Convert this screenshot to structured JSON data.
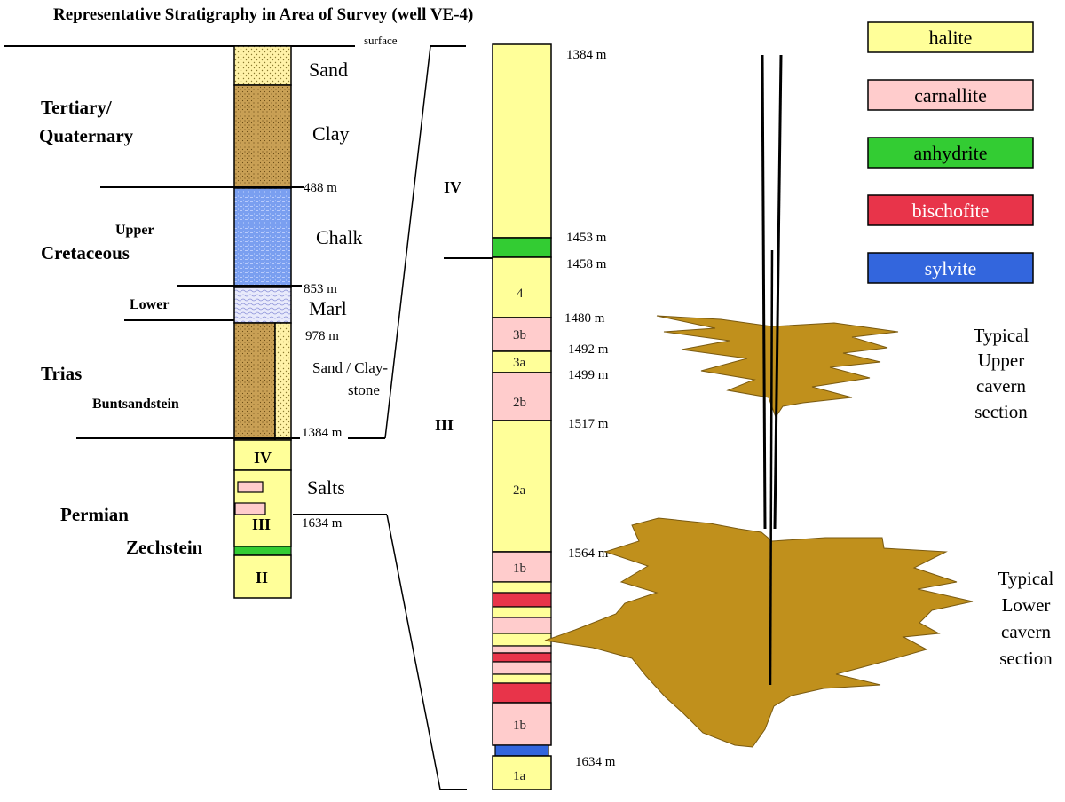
{
  "title": "Representative Stratigraphy in Area of Survey (well VE-4)",
  "surface_label": "surface",
  "eras": {
    "tertiary": "Tertiary/",
    "quaternary": "Quaternary",
    "upper": "Upper",
    "cretaceous": "Cretaceous",
    "lower": "Lower",
    "trias": "Trias",
    "buntsandstein": "Buntsandstein",
    "permian": "Permian",
    "zechstein": "Zechstein"
  },
  "lithology_labels": {
    "sand": "Sand",
    "clay": "Clay",
    "chalk": "Chalk",
    "marl": "Marl",
    "sand_clay_1": "Sand / Clay-",
    "sand_clay_2": "stone",
    "salts": "Salts"
  },
  "left_column_depths": {
    "d488": "488 m",
    "d853": "853 m",
    "d978": "978 m",
    "d1384": "1384 m",
    "d1634": "1634 m"
  },
  "left_column_units": {
    "iv": "IV",
    "iii": "III",
    "ii": "II"
  },
  "detail_column_depths": {
    "d1384": "1384 m",
    "d1453": "1453 m",
    "d1458": "1458 m",
    "d1480": "1480 m",
    "d1492": "1492 m",
    "d1499": "1499 m",
    "d1517": "1517 m",
    "d1564": "1564 m",
    "d1634": "1634 m"
  },
  "detail_units": {
    "iv": "IV",
    "iii": "III"
  },
  "detail_layers": {
    "l4": "4",
    "l3b": "3b",
    "l3a": "3a",
    "l2b": "2b",
    "l2a": "2a",
    "l1b_upper": "1b",
    "l1b_lower": "1b",
    "l1a": "1a"
  },
  "legend": [
    {
      "label": "halite",
      "color": "#ffff99"
    },
    {
      "label": "carnallite",
      "color": "#ffcccc"
    },
    {
      "label": "anhydrite",
      "color": "#33cc33"
    },
    {
      "label": "bischofite",
      "color": "#e8344a"
    },
    {
      "label": "sylvite",
      "color": "#3366dd"
    }
  ],
  "cavern_labels": {
    "upper": [
      "Typical",
      "Upper",
      "cavern",
      "section"
    ],
    "lower": [
      "Typical",
      "Lower",
      "cavern",
      "section"
    ]
  },
  "colors": {
    "halite": "#ffff99",
    "carnallite": "#ffcccc",
    "anhydrite": "#33cc33",
    "bischofite": "#e8344a",
    "sylvite": "#3366dd",
    "sand": "#fff2a8",
    "clay": "#c9a055",
    "chalk": "#7a9ff0",
    "marl": "#dfe2f8",
    "cavern": "#c0901c"
  }
}
